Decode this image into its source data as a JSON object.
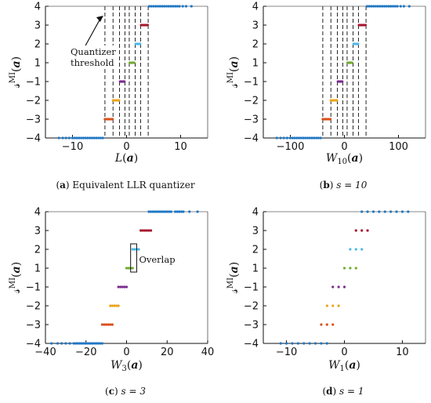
{
  "colors": {
    "-4": "#1f77c4",
    "-3": "#d9501c",
    "-2": "#eba51d",
    "-1": "#7b2d8e",
    "1": "#72ab2f",
    "2": "#4cb9e8",
    "3": "#a6172d",
    "4": "#1f77c4",
    "axis": "#111111",
    "threshold": "#222222"
  },
  "y_label": "𝓈MI(a)",
  "chart_data": [
    {
      "type": "scatter",
      "panel": "a",
      "caption_tag": "(a)",
      "caption_text": "Equivalent LLR quantizer",
      "xlabel": "L(a)",
      "xlim": [
        -15,
        15
      ],
      "xticks": [
        -10,
        0,
        10
      ],
      "ylim": [
        -4,
        4
      ],
      "yticks": [
        -4,
        -3,
        -2,
        -1,
        1,
        2,
        3,
        4
      ],
      "thresholds": [
        -4,
        -2.5,
        -1.3,
        -0.3,
        0.5,
        1.6,
        2.6,
        4
      ],
      "annotation": {
        "lines": [
          "Quantizer",
          "threshold"
        ],
        "arrow_to": [
          -4,
          3.55
        ]
      },
      "series": [
        {
          "level": -4,
          "points": [
            -12.5,
            -11.8,
            -11.2,
            -10.6,
            -10.0,
            -9.6,
            -9.2,
            -8.8,
            -8.4,
            -8.0,
            -7.6,
            -7.2,
            -6.8,
            -6.4,
            -6.0,
            -5.6,
            -5.2,
            -4.8,
            -4.4
          ]
        },
        {
          "level": -3,
          "points": [
            -4.0,
            -3.7,
            -3.4,
            -3.1,
            -2.8,
            -2.6
          ]
        },
        {
          "level": -2,
          "points": [
            -2.5,
            -2.2,
            -1.9,
            -1.6,
            -1.4
          ]
        },
        {
          "level": -1,
          "points": [
            -1.2,
            -1.0,
            -0.8,
            -0.6,
            -0.4
          ]
        },
        {
          "level": 1,
          "points": [
            0.6,
            0.8,
            1.0,
            1.2,
            1.4
          ]
        },
        {
          "level": 2,
          "points": [
            1.7,
            2.0,
            2.3,
            2.5
          ]
        },
        {
          "level": 3,
          "points": [
            2.7,
            3.0,
            3.3,
            3.6,
            3.9
          ]
        },
        {
          "level": 4,
          "points": [
            4.2,
            4.6,
            5.0,
            5.4,
            5.8,
            6.2,
            6.6,
            7.0,
            7.4,
            7.8,
            8.2,
            8.6,
            9.0,
            9.4,
            9.8,
            10.4,
            11.0,
            12.0
          ]
        }
      ]
    },
    {
      "type": "scatter",
      "panel": "b",
      "caption_tag": "(b)",
      "caption_text": "s = 10",
      "xlabel": "W10(a)",
      "xlim": [
        -150,
        150
      ],
      "xticks": [
        -100,
        0,
        100
      ],
      "ylim": [
        -4,
        4
      ],
      "yticks": [
        -4,
        -3,
        -2,
        -1,
        1,
        2,
        3,
        4
      ],
      "thresholds": [
        -40,
        -25,
        -13,
        -3,
        5,
        16,
        26,
        40
      ],
      "series": [
        {
          "level": -4,
          "points": [
            -125,
            -118,
            -112,
            -106,
            -100,
            -96,
            -92,
            -88,
            -84,
            -80,
            -76,
            -72,
            -68,
            -64,
            -60,
            -56,
            -52,
            -48,
            -44
          ]
        },
        {
          "level": -3,
          "points": [
            -40,
            -37,
            -34,
            -31,
            -28,
            -26
          ]
        },
        {
          "level": -2,
          "points": [
            -25,
            -22,
            -19,
            -16,
            -14
          ]
        },
        {
          "level": -1,
          "points": [
            -12,
            -10,
            -8,
            -6,
            -4
          ]
        },
        {
          "level": 1,
          "points": [
            6,
            8,
            10,
            12,
            14
          ]
        },
        {
          "level": 2,
          "points": [
            17,
            20,
            23,
            25
          ]
        },
        {
          "level": 3,
          "points": [
            27,
            30,
            33,
            36,
            39
          ]
        },
        {
          "level": 4,
          "points": [
            42,
            46,
            50,
            54,
            58,
            62,
            66,
            70,
            74,
            78,
            82,
            86,
            90,
            94,
            98,
            104,
            110,
            120
          ]
        }
      ]
    },
    {
      "type": "scatter",
      "panel": "c",
      "caption_tag": "(c)",
      "caption_text": "s = 3",
      "xlabel": "W3(a)",
      "xlim": [
        -40,
        40
      ],
      "xticks": [
        -40,
        -20,
        0,
        20,
        40
      ],
      "ylim": [
        -4,
        4
      ],
      "yticks": [
        -4,
        -3,
        -2,
        -1,
        1,
        2,
        3,
        4
      ],
      "overlap_box": {
        "x": [
          2,
          5
        ],
        "y": [
          0.9,
          2.15
        ],
        "label": "Overlap"
      },
      "series": [
        {
          "level": -4,
          "points": [
            -37,
            -34,
            -32,
            -30,
            -28,
            -26,
            -25,
            -24,
            -23,
            -22,
            -21,
            -20,
            -19,
            -18,
            -17,
            -16,
            -15,
            -14,
            -13,
            -12
          ]
        },
        {
          "level": -3,
          "points": [
            -12,
            -11,
            -10,
            -9,
            -8,
            -7
          ]
        },
        {
          "level": -2,
          "points": [
            -8,
            -7,
            -6,
            -5,
            -4
          ]
        },
        {
          "level": -1,
          "points": [
            -4,
            -3,
            -2,
            -1,
            0
          ]
        },
        {
          "level": 1,
          "points": [
            0,
            1,
            2,
            3
          ]
        },
        {
          "level": 2,
          "points": [
            3,
            4,
            5,
            6
          ]
        },
        {
          "level": 3,
          "points": [
            7,
            8,
            9,
            10,
            11,
            12
          ]
        },
        {
          "level": 4,
          "points": [
            11,
            12,
            13,
            14,
            15,
            16,
            17,
            18,
            19,
            20,
            21,
            22,
            24,
            25,
            26,
            27,
            28,
            31,
            35
          ]
        }
      ]
    },
    {
      "type": "scatter",
      "panel": "d",
      "caption_tag": "(d)",
      "caption_text": "s = 1",
      "xlabel": "W1(a)",
      "xlim": [
        -14,
        14
      ],
      "xticks": [
        -10,
        0,
        10
      ],
      "ylim": [
        -4,
        4
      ],
      "yticks": [
        -4,
        -3,
        -2,
        -1,
        1,
        2,
        3,
        4
      ],
      "series": [
        {
          "level": -4,
          "points": [
            -11,
            -10,
            -9,
            -8,
            -7,
            -6,
            -5,
            -4,
            -3
          ]
        },
        {
          "level": -3,
          "points": [
            -4,
            -3,
            -2
          ]
        },
        {
          "level": -2,
          "points": [
            -3,
            -2,
            -1
          ]
        },
        {
          "level": -1,
          "points": [
            -2,
            -1,
            0
          ]
        },
        {
          "level": 1,
          "points": [
            0,
            1,
            2
          ]
        },
        {
          "level": 2,
          "points": [
            1,
            2,
            3
          ]
        },
        {
          "level": 3,
          "points": [
            2,
            3,
            4
          ]
        },
        {
          "level": 4,
          "points": [
            3,
            4,
            5,
            6,
            7,
            8,
            9,
            10,
            11
          ]
        }
      ]
    }
  ]
}
